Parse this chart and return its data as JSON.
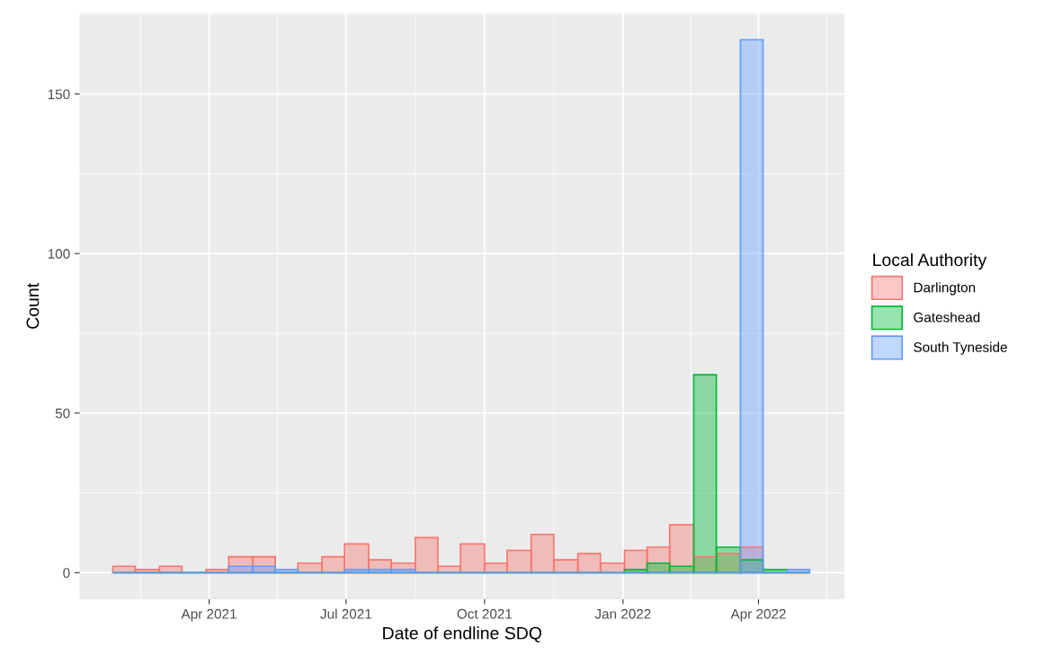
{
  "chart_data": {
    "type": "histogram",
    "xlabel": "Date of endline SDQ",
    "ylabel": "Count",
    "legend_title": "Local Authority",
    "legend": "right",
    "grid": true,
    "bins": [
      "2021-01-27",
      "2021-02-11",
      "2021-02-27",
      "2021-03-14",
      "2021-03-30",
      "2021-04-14",
      "2021-04-30",
      "2021-05-15",
      "2021-05-30",
      "2021-06-15",
      "2021-06-30",
      "2021-07-16",
      "2021-07-31",
      "2021-08-16",
      "2021-08-31",
      "2021-09-15",
      "2021-10-01",
      "2021-10-16",
      "2021-11-01",
      "2021-11-16",
      "2021-12-02",
      "2021-12-17",
      "2022-01-02",
      "2022-01-17",
      "2022-02-01",
      "2022-02-17",
      "2022-03-04",
      "2022-03-20",
      "2022-04-04",
      "2022-04-20",
      "2022-05-05"
    ],
    "series": [
      {
        "name": "Darlington",
        "color": "#f8766d",
        "values": [
          2,
          1,
          2,
          0,
          1,
          5,
          5,
          0,
          3,
          5,
          9,
          4,
          3,
          11,
          2,
          9,
          3,
          7,
          12,
          4,
          6,
          3,
          7,
          8,
          15,
          5,
          6,
          8,
          0,
          0
        ]
      },
      {
        "name": "Gateshead",
        "color": "#00ba38",
        "values": [
          0,
          0,
          0,
          0,
          0,
          0,
          0,
          0,
          0,
          0,
          0,
          0,
          0,
          0,
          0,
          0,
          0,
          0,
          0,
          0,
          0,
          0,
          1,
          3,
          2,
          62,
          8,
          4,
          1,
          0
        ]
      },
      {
        "name": "South Tyneside",
        "color": "#619cff",
        "values": [
          0,
          0,
          0,
          0,
          0,
          2,
          2,
          1,
          0,
          0,
          1,
          1,
          1,
          0,
          0,
          0,
          0,
          0,
          0,
          0,
          0,
          0,
          0,
          0,
          0,
          0,
          0,
          167,
          0,
          1
        ]
      }
    ],
    "xlim": [
      "2021-01-05",
      "2022-05-28"
    ],
    "xticks": [
      {
        "value": "2021-04-01",
        "label": "Apr 2021"
      },
      {
        "value": "2021-07-01",
        "label": "Jul 2021"
      },
      {
        "value": "2021-10-01",
        "label": "Oct 2021"
      },
      {
        "value": "2022-01-01",
        "label": "Jan 2022"
      },
      {
        "value": "2022-04-01",
        "label": "Apr 2022"
      }
    ],
    "ylim": [
      -8.35,
      175.35
    ],
    "yticks": [
      0,
      50,
      100,
      150
    ]
  }
}
